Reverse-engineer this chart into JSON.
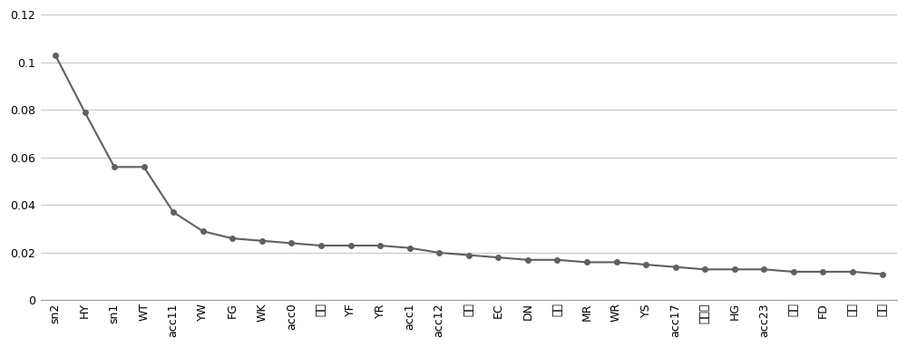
{
  "categories": [
    "sn2",
    "HY",
    "sn1",
    "WT",
    "acc11",
    "YW",
    "FG",
    "WK",
    "acc0",
    "药基",
    "YF",
    "YR",
    "acc1",
    "acc12",
    "估胺",
    "EC",
    "DN",
    "能基",
    "MR",
    "WR",
    "YS",
    "acc17",
    "非极性",
    "HG",
    "acc23",
    "咊唅",
    "FD",
    "段基",
    "硫醇"
  ],
  "values": [
    0.103,
    0.079,
    0.056,
    0.056,
    0.037,
    0.029,
    0.026,
    0.025,
    0.024,
    0.023,
    0.023,
    0.023,
    0.022,
    0.02,
    0.019,
    0.018,
    0.017,
    0.017,
    0.016,
    0.016,
    0.015,
    0.014,
    0.013,
    0.013,
    0.013,
    0.012,
    0.012,
    0.012,
    0.011
  ],
  "line_color": "#606060",
  "marker_color": "#606060",
  "marker_size": 4,
  "line_width": 1.5,
  "ylim": [
    0,
    0.12
  ],
  "yticks": [
    0,
    0.02,
    0.04,
    0.06,
    0.08,
    0.1,
    0.12
  ],
  "ytick_labels": [
    "0",
    "0.02",
    "0.04",
    "0.06",
    "0.08",
    "0.1",
    "0.12"
  ],
  "background_color": "#ffffff",
  "grid_color": "#c8c8c8",
  "tick_fontsize": 9,
  "xlabel_fontsize": 9
}
